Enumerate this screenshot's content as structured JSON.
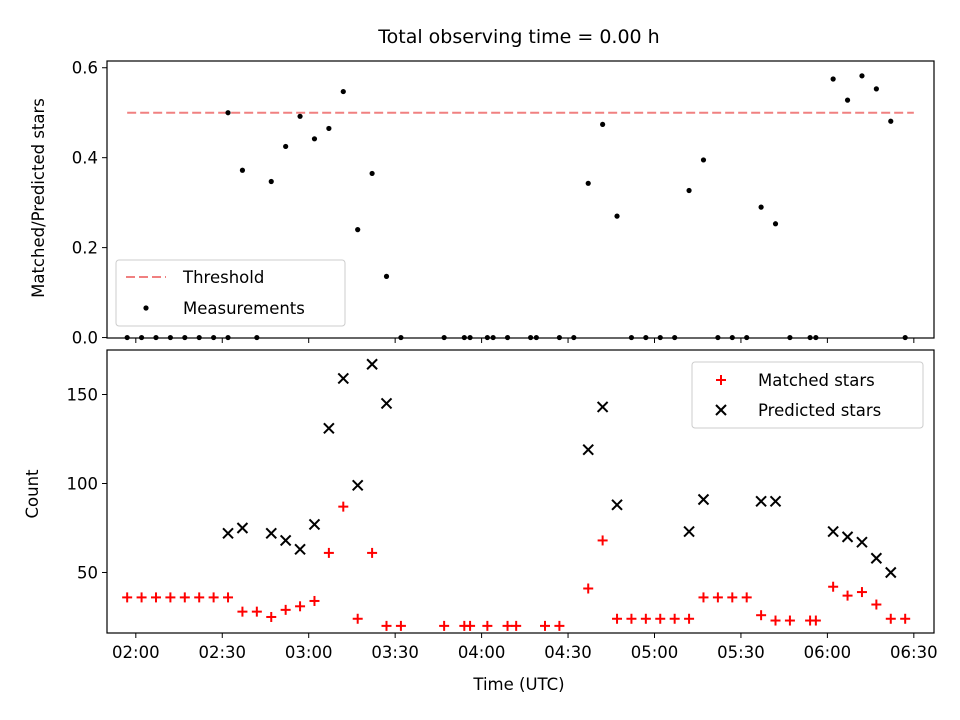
{
  "chart_data": [
    {
      "type": "scatter",
      "title": "Total observing time = 0.00 h",
      "xlabel": "",
      "ylabel": "Matched/Predicted stars",
      "xlim_min": [
        110,
        397
      ],
      "ylim": [
        -0.001,
        0.615
      ],
      "yticks": [
        0.0,
        0.2,
        0.4,
        0.6
      ],
      "ytick_labels": [
        "0.0",
        "0.2",
        "0.4",
        "0.6"
      ],
      "threshold": {
        "name": "Threshold",
        "value": 0.5,
        "x_range_min": [
          117,
          390
        ],
        "color": "#f08080"
      },
      "legend": {
        "placement": "lower-left",
        "entries": [
          "Threshold",
          "Measurements"
        ]
      },
      "series": [
        {
          "name": "Measurements",
          "color": "#000000",
          "marker": "dot",
          "points": [
            [
              117,
              0
            ],
            [
              122,
              0
            ],
            [
              127,
              0
            ],
            [
              132,
              0
            ],
            [
              137,
              0
            ],
            [
              142,
              0
            ],
            [
              147,
              0
            ],
            [
              152,
              0
            ],
            [
              152,
              0.5
            ],
            [
              157,
              0.372
            ],
            [
              162,
              0
            ],
            [
              167,
              0.347
            ],
            [
              172,
              0.425
            ],
            [
              177,
              0.492
            ],
            [
              182,
              0.442
            ],
            [
              187,
              0.465
            ],
            [
              192,
              0.547
            ],
            [
              197,
              0.24
            ],
            [
              202,
              0.365
            ],
            [
              207,
              0.136
            ],
            [
              212,
              0
            ],
            [
              227,
              0
            ],
            [
              234,
              0
            ],
            [
              236,
              0
            ],
            [
              242,
              0
            ],
            [
              244,
              0
            ],
            [
              249,
              0
            ],
            [
              257,
              0
            ],
            [
              259,
              0
            ],
            [
              267,
              0
            ],
            [
              272,
              0
            ],
            [
              277,
              0.343
            ],
            [
              282,
              0.474
            ],
            [
              287,
              0.27
            ],
            [
              292,
              0
            ],
            [
              297,
              0
            ],
            [
              302,
              0
            ],
            [
              307,
              0
            ],
            [
              312,
              0.327
            ],
            [
              317,
              0.395
            ],
            [
              322,
              0
            ],
            [
              327,
              0
            ],
            [
              332,
              0
            ],
            [
              337,
              0.29
            ],
            [
              342,
              0.253
            ],
            [
              347,
              0
            ],
            [
              354,
              0
            ],
            [
              356,
              0
            ],
            [
              362,
              0.575
            ],
            [
              367,
              0.528
            ],
            [
              372,
              0.582
            ],
            [
              377,
              0.553
            ],
            [
              382,
              0.481
            ],
            [
              387,
              0
            ]
          ]
        }
      ]
    },
    {
      "type": "scatter",
      "title": "",
      "xlabel": "Time (UTC)",
      "ylabel": "Count",
      "xlim_min": [
        110,
        397
      ],
      "ylim": [
        16,
        175
      ],
      "yticks": [
        50,
        100,
        150
      ],
      "ytick_labels": [
        "50",
        "100",
        "150"
      ],
      "xticks_min": [
        120,
        150,
        180,
        210,
        240,
        270,
        300,
        330,
        360,
        390
      ],
      "xtick_labels": [
        "02:00",
        "02:30",
        "03:00",
        "03:30",
        "04:00",
        "04:30",
        "05:00",
        "05:30",
        "06:00",
        "06:30"
      ],
      "legend": {
        "placement": "upper-right",
        "entries": [
          "Matched stars",
          "Predicted stars"
        ]
      },
      "series": [
        {
          "name": "Matched stars",
          "color": "#ff0000",
          "marker": "plus",
          "points": [
            [
              117,
              36
            ],
            [
              122,
              36
            ],
            [
              127,
              36
            ],
            [
              132,
              36
            ],
            [
              137,
              36
            ],
            [
              142,
              36
            ],
            [
              147,
              36
            ],
            [
              152,
              36
            ],
            [
              157,
              28
            ],
            [
              162,
              28
            ],
            [
              167,
              25
            ],
            [
              172,
              29
            ],
            [
              177,
              31
            ],
            [
              182,
              34
            ],
            [
              187,
              61
            ],
            [
              192,
              87
            ],
            [
              197,
              24
            ],
            [
              202,
              61
            ],
            [
              207,
              20
            ],
            [
              212,
              20
            ],
            [
              227,
              20
            ],
            [
              234,
              20
            ],
            [
              236,
              20
            ],
            [
              242,
              20
            ],
            [
              249,
              20
            ],
            [
              252,
              20
            ],
            [
              262,
              20
            ],
            [
              267,
              20
            ],
            [
              277,
              41
            ],
            [
              282,
              68
            ],
            [
              287,
              24
            ],
            [
              292,
              24
            ],
            [
              297,
              24
            ],
            [
              302,
              24
            ],
            [
              307,
              24
            ],
            [
              312,
              24
            ],
            [
              317,
              36
            ],
            [
              322,
              36
            ],
            [
              327,
              36
            ],
            [
              332,
              36
            ],
            [
              337,
              26
            ],
            [
              342,
              23
            ],
            [
              347,
              23
            ],
            [
              354,
              23
            ],
            [
              356,
              23
            ],
            [
              362,
              42
            ],
            [
              367,
              37
            ],
            [
              372,
              39
            ],
            [
              377,
              32
            ],
            [
              382,
              24
            ],
            [
              387,
              24
            ]
          ]
        },
        {
          "name": "Predicted stars",
          "color": "#000000",
          "marker": "x",
          "points": [
            [
              152,
              72
            ],
            [
              157,
              75
            ],
            [
              167,
              72
            ],
            [
              172,
              68
            ],
            [
              177,
              63
            ],
            [
              182,
              77
            ],
            [
              187,
              131
            ],
            [
              192,
              159
            ],
            [
              197,
              99
            ],
            [
              202,
              167
            ],
            [
              207,
              145
            ],
            [
              277,
              119
            ],
            [
              282,
              143
            ],
            [
              287,
              88
            ],
            [
              312,
              73
            ],
            [
              317,
              91
            ],
            [
              337,
              90
            ],
            [
              342,
              90
            ],
            [
              362,
              73
            ],
            [
              367,
              70
            ],
            [
              372,
              67
            ],
            [
              377,
              58
            ],
            [
              382,
              50
            ]
          ]
        }
      ]
    }
  ]
}
